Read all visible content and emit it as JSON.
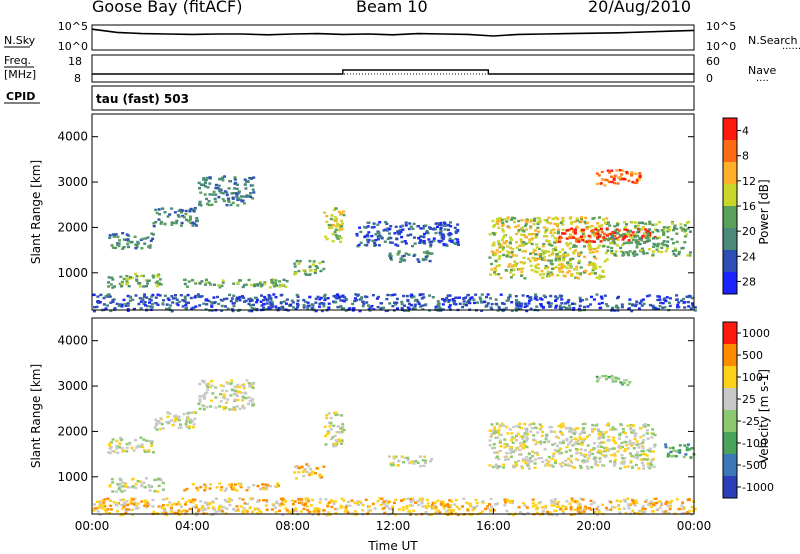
{
  "header": {
    "station": "Goose Bay (fitACF)",
    "beam": "Beam 10",
    "date": "20/Aug/2010"
  },
  "chart_data": [
    {
      "type": "line",
      "name": "noise-panel",
      "left_label": "N.Sky",
      "right_label": "N.Search",
      "left_ticks": [
        "10^5",
        "10^0"
      ],
      "right_ticks": [
        "10^5",
        "10^0"
      ],
      "description_values": {
        "noise_sky_log10": [
          4.7,
          3.9,
          3.6,
          3.5,
          3.4,
          3.5,
          3.5,
          3.3,
          3.5,
          3.6,
          3.4,
          3.5,
          3.3,
          3.6,
          3.5,
          3.4,
          3.0,
          3.4,
          3.5,
          3.6,
          3.7,
          3.8,
          4.0,
          4.2,
          4.4
        ],
        "x_hours": [
          0,
          1,
          2,
          3,
          4,
          5,
          6,
          7,
          8,
          9,
          10,
          11,
          12,
          13,
          14,
          15,
          16,
          17,
          18,
          19,
          20,
          21,
          22,
          23,
          24
        ]
      }
    },
    {
      "type": "line",
      "name": "freq-nave-panel",
      "left_label_top": "Freq.",
      "left_label_unit": "[MHz]",
      "right_label": "Nave",
      "left_ticks": [
        "18",
        "8"
      ],
      "right_ticks": [
        "60",
        "0"
      ],
      "frequency_mhz": {
        "segments": [
          {
            "start_hour": 0,
            "end_hour": 10,
            "value": 10.5
          },
          {
            "start_hour": 10,
            "end_hour": 15.8,
            "value": 12.5
          },
          {
            "start_hour": 15.8,
            "end_hour": 24,
            "value": 10.5
          }
        ]
      },
      "nave": 14
    },
    {
      "type": "table",
      "name": "cpid-panel",
      "label": "CPID",
      "program": "tau (fast) 503"
    },
    {
      "type": "heatmap",
      "name": "power-panel",
      "ylabel": "Slant Range [km]",
      "yticks": [
        1000,
        2000,
        3000,
        4000
      ],
      "ylim": [
        180,
        4500
      ],
      "xlim_hours": [
        0,
        24
      ],
      "colorbar": {
        "label": "Power [dB]",
        "ticks": [
          "4",
          "8",
          "12",
          "16",
          "20",
          "24",
          "28"
        ],
        "colors": [
          "#1a24ff",
          "#2e4fb6",
          "#4a8a78",
          "#5aa05a",
          "#c9d62a",
          "#ffb02a",
          "#ff6a14",
          "#ff1a10"
        ]
      },
      "echo_regions": [
        {
          "t0": 0.6,
          "t1": 2.8,
          "r0": 700,
          "r1": 1000,
          "level": 3
        },
        {
          "t0": 0.6,
          "t1": 2.4,
          "r0": 1550,
          "r1": 1900,
          "level": 2
        },
        {
          "t0": 2.4,
          "t1": 4.2,
          "r0": 2050,
          "r1": 2450,
          "level": 2
        },
        {
          "t0": 4.2,
          "t1": 6.4,
          "r0": 2500,
          "r1": 3150,
          "level": 2
        },
        {
          "t0": 3.6,
          "t1": 7.8,
          "r0": 700,
          "r1": 880,
          "level": 3
        },
        {
          "t0": 8.0,
          "t1": 9.2,
          "r0": 980,
          "r1": 1300,
          "level": 3
        },
        {
          "t0": 9.2,
          "t1": 10.0,
          "r0": 1700,
          "r1": 2450,
          "level": 4
        },
        {
          "t0": 11.8,
          "t1": 13.5,
          "r0": 1250,
          "r1": 1500,
          "level": 2
        },
        {
          "t0": 10.5,
          "t1": 14.6,
          "r0": 1600,
          "r1": 2150,
          "level": 1
        },
        {
          "t0": 15.8,
          "t1": 20.5,
          "r0": 900,
          "r1": 2250,
          "level": 4
        },
        {
          "t0": 18.5,
          "t1": 22.4,
          "r0": 1700,
          "r1": 2000,
          "level": 7
        },
        {
          "t0": 20.5,
          "t1": 23.8,
          "r0": 1400,
          "r1": 2150,
          "level": 3
        },
        {
          "t0": 20.0,
          "t1": 21.8,
          "r0": 2950,
          "r1": 3300,
          "level": 6
        },
        {
          "t0": 0,
          "t1": 24,
          "r0": 180,
          "r1": 550,
          "level": 1
        }
      ]
    },
    {
      "type": "heatmap",
      "name": "velocity-panel",
      "ylabel": "Slant Range [km]",
      "yticks": [
        1000,
        2000,
        3000,
        4000
      ],
      "ylim": [
        180,
        4500
      ],
      "xlim_hours": [
        0,
        24
      ],
      "xticks": [
        "00:00",
        "04:00",
        "08:00",
        "12:00",
        "16:00",
        "20:00",
        "00:00"
      ],
      "xlabel": "Time UT",
      "colorbar": {
        "label": "Velocity [m s-1]",
        "ticks": [
          "1000",
          "500",
          "100",
          "25",
          "-25",
          "-100",
          "-500",
          "-1000"
        ],
        "colors": [
          "#2b3fb8",
          "#3b78b8",
          "#4aa35a",
          "#8cc870",
          "#c8c8c8",
          "#ffd21a",
          "#ff8c00",
          "#ff1a10"
        ]
      },
      "echo_regions": [
        {
          "t0": 0.6,
          "t1": 2.8,
          "r0": 700,
          "r1": 1000,
          "level": 4
        },
        {
          "t0": 0.6,
          "t1": 2.4,
          "r0": 1550,
          "r1": 1900,
          "level": 4
        },
        {
          "t0": 2.4,
          "t1": 4.2,
          "r0": 2050,
          "r1": 2450,
          "level": 4
        },
        {
          "t0": 4.2,
          "t1": 6.4,
          "r0": 2500,
          "r1": 3150,
          "level": 4
        },
        {
          "t0": 3.6,
          "t1": 7.4,
          "r0": 720,
          "r1": 880,
          "level": 5
        },
        {
          "t0": 8.0,
          "t1": 9.2,
          "r0": 980,
          "r1": 1300,
          "level": 5
        },
        {
          "t0": 9.2,
          "t1": 10.0,
          "r0": 1700,
          "r1": 2450,
          "level": 4
        },
        {
          "t0": 11.8,
          "t1": 13.5,
          "r0": 1250,
          "r1": 1500,
          "level": 4
        },
        {
          "t0": 15.8,
          "t1": 22.4,
          "r0": 1200,
          "r1": 2200,
          "level": 4
        },
        {
          "t0": 22.8,
          "t1": 24,
          "r0": 1450,
          "r1": 1750,
          "level": 2
        },
        {
          "t0": 20.0,
          "t1": 21.4,
          "r0": 3050,
          "r1": 3250,
          "level": 3
        },
        {
          "t0": 0,
          "t1": 24,
          "r0": 180,
          "r1": 550,
          "level": 5
        }
      ]
    }
  ]
}
